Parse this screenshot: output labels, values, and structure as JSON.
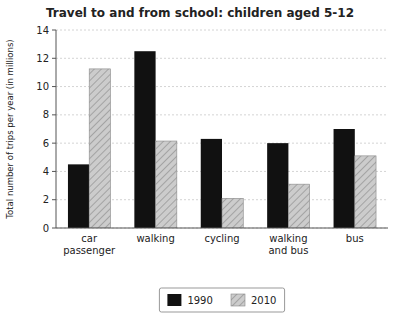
{
  "chart_data": {
    "type": "bar",
    "title": "Travel to and from school: children aged 5-12",
    "ylabel": "Total number of trips per year (in millions)",
    "categories": [
      "car\npassenger",
      "walking",
      "cycling",
      "walking\nand bus",
      "bus"
    ],
    "series": [
      {
        "name": "1990",
        "color": "#111111",
        "values": [
          4.5,
          12.5,
          6.3,
          6.0,
          7.0
        ]
      },
      {
        "name": "2010",
        "color": "#cccccc",
        "values": [
          11.25,
          6.15,
          2.1,
          3.1,
          5.1
        ]
      }
    ],
    "ylim": [
      0,
      14
    ],
    "yticks": [
      0,
      2,
      4,
      6,
      8,
      10,
      12,
      14
    ],
    "grid": true,
    "legend": "bottom"
  }
}
